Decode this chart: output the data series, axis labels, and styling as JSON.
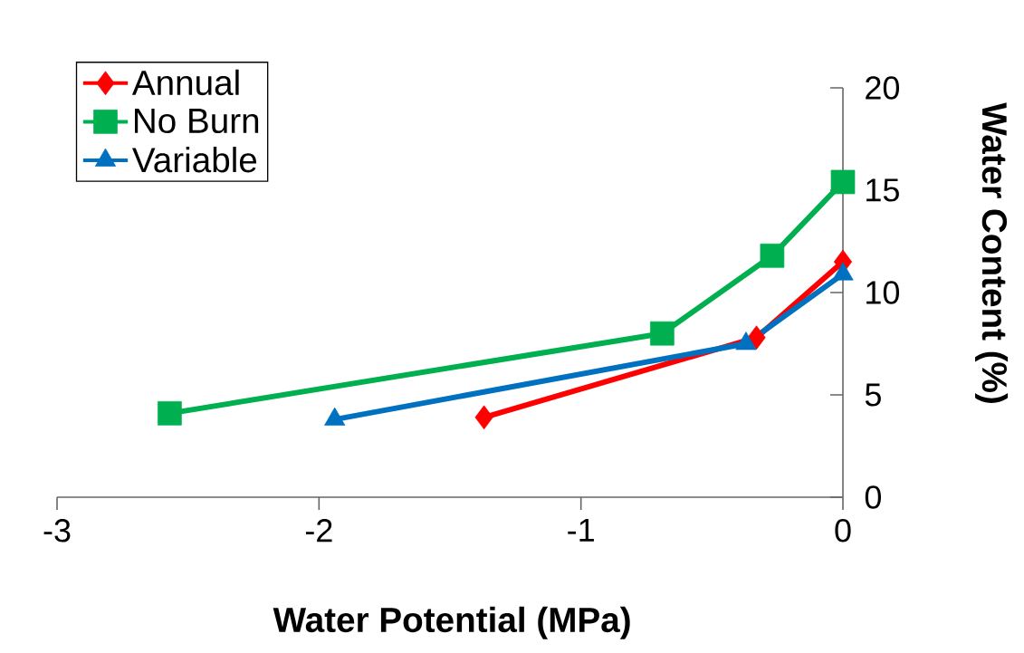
{
  "chart_data": {
    "type": "line",
    "xlabel": "Water Potential (MPa)",
    "ylabel": "Water Content (%)",
    "xlim": [
      -3,
      0
    ],
    "xticks": [
      -3,
      -2,
      -1,
      0
    ],
    "ylim": [
      0,
      20
    ],
    "yticks": [
      0,
      5,
      10,
      15,
      20
    ],
    "grid": false,
    "legend": "top left",
    "line_style": "solid",
    "series": [
      {
        "name": "Annual",
        "color": "#ff0000",
        "marker": "diamond",
        "x": [
          -1.37,
          -0.33,
          0
        ],
        "values": [
          3.9,
          7.8,
          11.5
        ]
      },
      {
        "name": "No Burn",
        "color": "#00b050",
        "marker": "square",
        "x": [
          -2.57,
          -0.69,
          -0.27,
          0
        ],
        "values": [
          4.1,
          8.0,
          11.8,
          15.4
        ]
      },
      {
        "name": "Variable",
        "color": "#0070c0",
        "marker": "triangle",
        "x": [
          -1.94,
          -0.37,
          0
        ],
        "values": [
          3.8,
          7.5,
          10.9
        ]
      }
    ]
  }
}
